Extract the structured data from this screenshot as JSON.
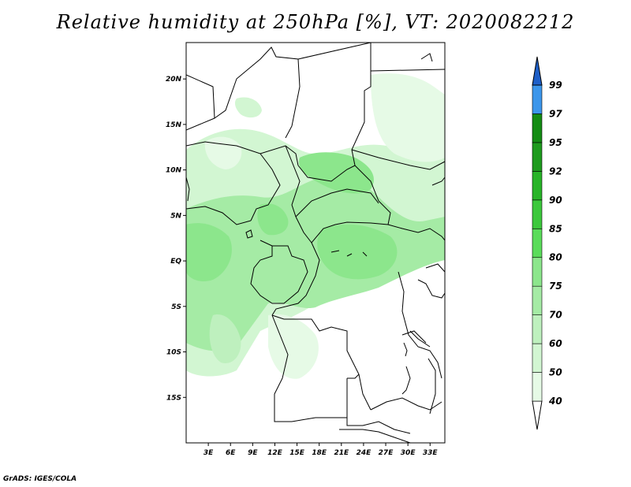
{
  "title": "Relative humidity at 250hPa [%], VT: 2020082212",
  "credit": "GrADS: IGES/COLA",
  "map": {
    "lon_range": [
      0,
      35
    ],
    "lat_range": [
      -20,
      24
    ],
    "lat_ticks": [
      {
        "value": 20,
        "label": "20N"
      },
      {
        "value": 15,
        "label": "15N"
      },
      {
        "value": 10,
        "label": "10N"
      },
      {
        "value": 5,
        "label": "5N"
      },
      {
        "value": 0,
        "label": "EQ"
      },
      {
        "value": -5,
        "label": "5S"
      },
      {
        "value": -10,
        "label": "10S"
      },
      {
        "value": -15,
        "label": "15S"
      }
    ],
    "lon_ticks": [
      {
        "value": 3,
        "label": "3E"
      },
      {
        "value": 6,
        "label": "6E"
      },
      {
        "value": 9,
        "label": "9E"
      },
      {
        "value": 12,
        "label": "12E"
      },
      {
        "value": 15,
        "label": "15E"
      },
      {
        "value": 18,
        "label": "18E"
      },
      {
        "value": 21,
        "label": "21E"
      },
      {
        "value": 24,
        "label": "24E"
      },
      {
        "value": 27,
        "label": "27E"
      },
      {
        "value": 30,
        "label": "30E"
      },
      {
        "value": 33,
        "label": "33E"
      }
    ]
  },
  "colorbar": {
    "levels": [
      {
        "label": "40",
        "color": "#e6fae6"
      },
      {
        "label": "50",
        "color": "#d2f6d2"
      },
      {
        "label": "60",
        "color": "#bef0be"
      },
      {
        "label": "70",
        "color": "#a5eba5"
      },
      {
        "label": "75",
        "color": "#8ce68c"
      },
      {
        "label": "80",
        "color": "#5adc5a"
      },
      {
        "label": "85",
        "color": "#3cc83c"
      },
      {
        "label": "90",
        "color": "#28b428"
      },
      {
        "label": "92",
        "color": "#1e9b1e"
      },
      {
        "label": "95",
        "color": "#148c14"
      },
      {
        "label": "97",
        "color": "#3c96eb"
      },
      {
        "label": "99",
        "color": "#1e6ed2"
      }
    ],
    "bottom_color": "#ffffff",
    "top_color": "#1e5fc8"
  }
}
